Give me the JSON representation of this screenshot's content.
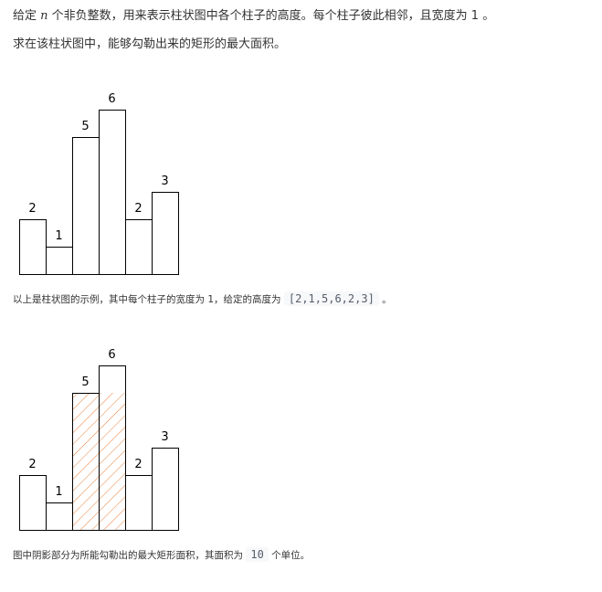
{
  "problem": {
    "line1_prefix": "给定",
    "line1_var": "n",
    "line1_suffix": "个非负整数，用来表示柱状图中各个柱子的高度。每个柱子彼此相邻，且宽度为 1 。",
    "line2": "求在该柱状图中，能够勾勒出来的矩形的最大面积。"
  },
  "caption1": {
    "text": "以上是柱状图的示例，其中每个柱子的宽度为 1，给定的高度为",
    "code": "[2,1,5,6,2,3]",
    "suffix": "。"
  },
  "caption2": {
    "text": "图中阴影部分为所能勾勒出的最大矩形面积，其面积为",
    "code": "10",
    "suffix": "个单位。"
  },
  "chart_data": [
    {
      "type": "bar",
      "categories": [
        "",
        "",
        "",
        "",
        "",
        ""
      ],
      "values": [
        2,
        1,
        5,
        6,
        2,
        3
      ],
      "data_labels": [
        "2",
        "1",
        "5",
        "6",
        "2",
        "3"
      ],
      "title": "",
      "xlabel": "",
      "ylabel": "",
      "ylim": [
        0,
        6
      ]
    },
    {
      "type": "bar",
      "categories": [
        "",
        "",
        "",
        "",
        "",
        ""
      ],
      "values": [
        2,
        1,
        5,
        6,
        2,
        3
      ],
      "data_labels": [
        "2",
        "1",
        "5",
        "6",
        "2",
        "3"
      ],
      "highlight": {
        "start_index": 2,
        "end_index": 3,
        "height": 5,
        "area": 10
      },
      "highlight_color": "#e8823a",
      "title": "",
      "xlabel": "",
      "ylabel": "",
      "ylim": [
        0,
        6
      ]
    }
  ]
}
